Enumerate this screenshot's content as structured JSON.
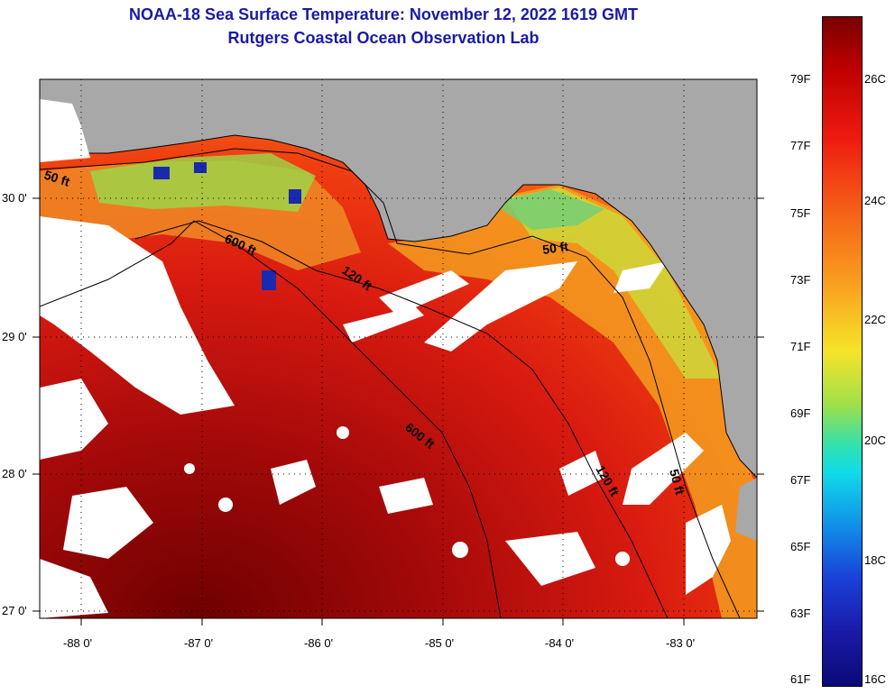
{
  "header": {
    "title": "NOAA-18 Sea Surface Temperature:  November 12, 2022 1619 GMT",
    "subtitle": "Rutgers Coastal Ocean Observation Lab"
  },
  "map": {
    "lon_ticks": [
      "-88 0'",
      "-87 0'",
      "-86 0'",
      "-85 0'",
      "-84 0'",
      "-83 0'"
    ],
    "lat_ticks": [
      "30 0'",
      "29 0'",
      "28 0'",
      "27 0'"
    ],
    "isobath_labels": [
      "50 ft",
      "600 ft",
      "120 ft",
      "50 ft",
      "600 ft",
      "120 ft",
      "50 ft"
    ]
  },
  "colorbar": {
    "fahrenheit": [
      "79F",
      "77F",
      "75F",
      "73F",
      "71F",
      "69F",
      "67F",
      "65F",
      "63F",
      "61F"
    ],
    "celsius": [
      "26C",
      "24C",
      "22C",
      "20C",
      "18C",
      "16C"
    ]
  },
  "colors": {
    "land": "#a8a8a8",
    "cloud": "#ffffff",
    "title": "#1a1aa6"
  }
}
